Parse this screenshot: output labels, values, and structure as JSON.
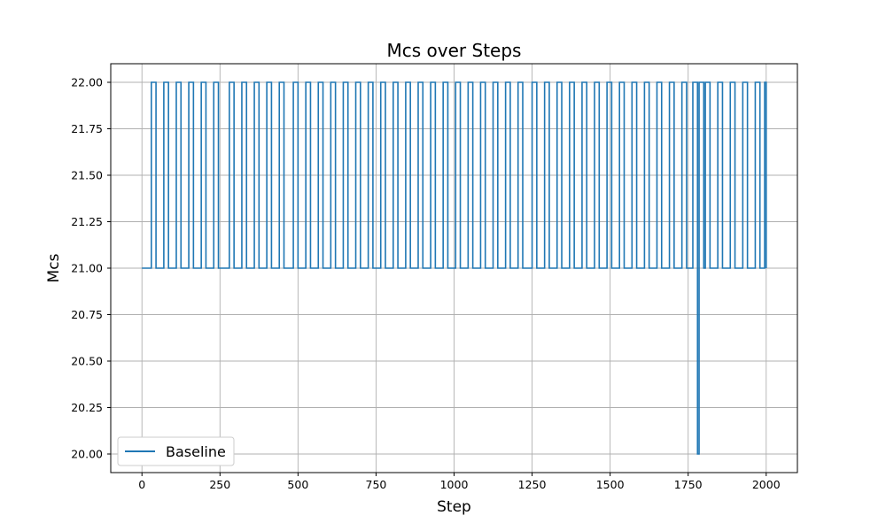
{
  "chart_data": {
    "type": "line",
    "title": "Mcs over Steps",
    "xlabel": "Step",
    "ylabel": "Mcs",
    "xlim": [
      -100,
      2100
    ],
    "ylim": [
      19.9,
      22.1
    ],
    "x_ticks": [
      0,
      250,
      500,
      750,
      1000,
      1250,
      1500,
      1750,
      2000
    ],
    "x_tick_labels": [
      "0",
      "250",
      "500",
      "750",
      "1000",
      "1250",
      "1500",
      "1750",
      "2000"
    ],
    "y_ticks": [
      20.0,
      20.25,
      20.5,
      20.75,
      21.0,
      21.25,
      21.5,
      21.75,
      22.0
    ],
    "y_tick_labels": [
      "20.00",
      "20.25",
      "20.50",
      "20.75",
      "21.00",
      "21.25",
      "21.50",
      "21.75",
      "22.00"
    ],
    "grid": true,
    "legend_position": "lower-left",
    "series": [
      {
        "name": "Baseline",
        "color": "#1f77b4",
        "step": true,
        "x": [
          0,
          30,
          45,
          70,
          85,
          110,
          125,
          150,
          165,
          190,
          205,
          230,
          245,
          280,
          295,
          320,
          335,
          360,
          375,
          400,
          415,
          440,
          455,
          485,
          500,
          525,
          540,
          565,
          580,
          605,
          620,
          645,
          660,
          685,
          700,
          725,
          740,
          765,
          780,
          805,
          820,
          845,
          860,
          885,
          900,
          925,
          940,
          965,
          980,
          1005,
          1020,
          1045,
          1060,
          1085,
          1100,
          1125,
          1140,
          1165,
          1180,
          1205,
          1220,
          1250,
          1265,
          1290,
          1305,
          1330,
          1345,
          1370,
          1385,
          1410,
          1425,
          1450,
          1465,
          1490,
          1505,
          1530,
          1545,
          1570,
          1585,
          1610,
          1625,
          1650,
          1665,
          1690,
          1705,
          1730,
          1745,
          1765,
          1780,
          1785,
          1800,
          1805,
          1820,
          1845,
          1860,
          1885,
          1900,
          1925,
          1940,
          1965,
          1980,
          1995,
          2000
        ],
        "y": [
          21,
          22,
          21,
          22,
          21,
          22,
          21,
          22,
          21,
          22,
          21,
          22,
          21,
          22,
          21,
          22,
          21,
          22,
          21,
          22,
          21,
          22,
          21,
          22,
          21,
          22,
          21,
          22,
          21,
          22,
          21,
          22,
          21,
          22,
          21,
          22,
          21,
          22,
          21,
          22,
          21,
          22,
          21,
          22,
          21,
          22,
          21,
          22,
          21,
          22,
          21,
          22,
          21,
          22,
          21,
          22,
          21,
          22,
          21,
          22,
          21,
          22,
          21,
          22,
          21,
          22,
          21,
          22,
          21,
          22,
          21,
          22,
          21,
          22,
          21,
          22,
          21,
          22,
          21,
          22,
          21,
          22,
          21,
          22,
          21,
          22,
          21,
          22,
          20,
          22,
          21,
          22,
          21,
          22,
          21,
          22,
          21,
          22,
          21,
          22,
          21,
          22,
          21
        ]
      }
    ]
  }
}
